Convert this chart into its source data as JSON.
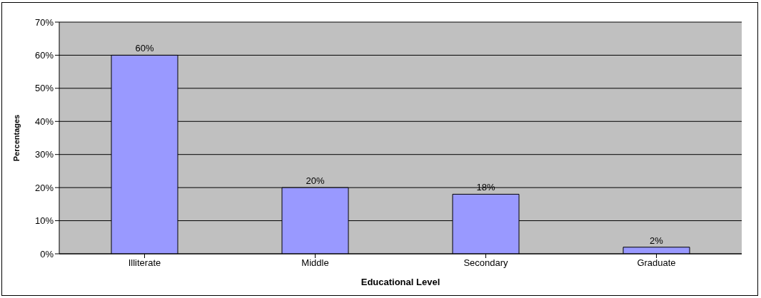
{
  "chart_data": {
    "type": "bar",
    "xlabel": "Educational Level",
    "ylabel": "Percentages",
    "categories": [
      "Illiterate",
      "Middle",
      "Secondary",
      "Graduate"
    ],
    "values": [
      60,
      20,
      18,
      2
    ],
    "color": "#9999ff",
    "value_labels": [
      "60%",
      "20%",
      "18%",
      "2%"
    ],
    "ylim": [
      0,
      70
    ],
    "yticks": [
      {
        "value": 0,
        "label": "0%"
      },
      {
        "value": 10,
        "label": "10%"
      },
      {
        "value": 20,
        "label": "20%"
      },
      {
        "value": 30,
        "label": "30%"
      },
      {
        "value": 40,
        "label": "40%"
      },
      {
        "value": 50,
        "label": "50%"
      },
      {
        "value": 60,
        "label": "60%"
      },
      {
        "value": 70,
        "label": "70%"
      }
    ],
    "grid": "y"
  }
}
